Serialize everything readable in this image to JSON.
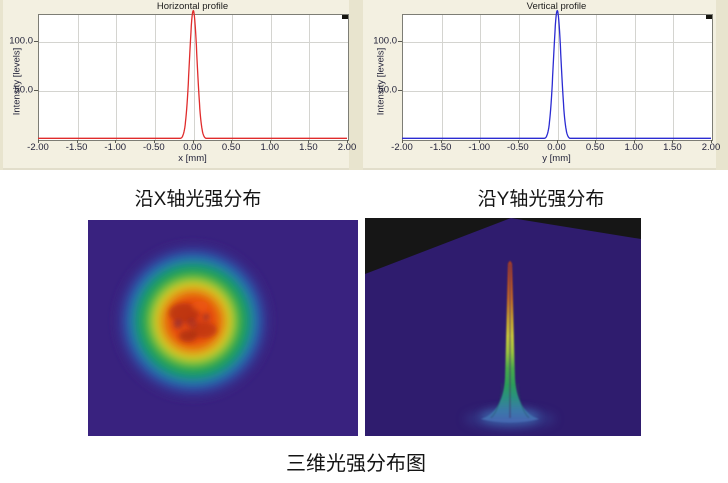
{
  "window": {
    "description": "laser beam profiler intensity analysis figure"
  },
  "theme": {
    "panel_background": "#f3f0e1",
    "panel_edge_strip": "#e8e4ce",
    "plot_background": "#ffffff",
    "plot_border": "#7d7d75",
    "gridline": "#d4d4d0",
    "tick_text": "#23233a",
    "page_background": "#ffffff"
  },
  "chart_data": [
    {
      "type": "line",
      "title": "Horizontal profile",
      "xlabel": "x [mm]",
      "ylabel": "Intensity [levels]",
      "x_range": [
        -2.0,
        2.0
      ],
      "y_range": [
        0,
        127.5
      ],
      "x_ticks": [
        -2.0,
        -1.5,
        -1.0,
        -0.5,
        0.0,
        0.5,
        1.0,
        1.5,
        2.0
      ],
      "x_tick_labels": [
        "-2.00",
        "-1.50",
        "-1.00",
        "-0.50",
        "0.00",
        "0.50",
        "1.00",
        "1.50",
        "2.00"
      ],
      "y_ticks": [
        50,
        100
      ],
      "y_tick_labels": [
        "50.0",
        "100.0"
      ],
      "grid": true,
      "legend": false,
      "series": [
        {
          "name": "horizontal-intensity-profile",
          "shape": "gaussian",
          "center_mm": 0.01,
          "sigma_mm": 0.05,
          "peak_levels": 131,
          "color": "#e02c2c"
        }
      ]
    },
    {
      "type": "line",
      "title": "Vertical profile",
      "xlabel": "y [mm]",
      "ylabel": "Intensity [levels]",
      "x_range": [
        -2.0,
        2.0
      ],
      "y_range": [
        0,
        127.5
      ],
      "x_ticks": [
        -2.0,
        -1.5,
        -1.0,
        -0.5,
        0.0,
        0.5,
        1.0,
        1.5,
        2.0
      ],
      "x_tick_labels": [
        "-2.00",
        "-1.50",
        "-1.00",
        "-0.50",
        "0.00",
        "0.50",
        "1.00",
        "1.50",
        "2.00"
      ],
      "y_ticks": [
        50,
        100
      ],
      "y_tick_labels": [
        "50.0",
        "100.0"
      ],
      "grid": true,
      "legend": false,
      "series": [
        {
          "name": "vertical-intensity-profile",
          "shape": "gaussian",
          "center_mm": 0.01,
          "sigma_mm": 0.05,
          "peak_levels": 131,
          "color": "#2b2bd2"
        }
      ]
    }
  ],
  "captions": {
    "x_axis": "沿X轴光强分布",
    "y_axis": "沿Y轴光强分布",
    "bottom": "三维光强分布图"
  },
  "images": {
    "beam_2d": {
      "description": "2D beam intensity spot, rainbow colormap on indigo background",
      "background": "#39227f",
      "colormap": [
        "#39227f",
        "#31409c",
        "#2272b4",
        "#1e9378",
        "#1fa44c",
        "#7ec437",
        "#d8d025",
        "#e8500e",
        "#dc3b10"
      ]
    },
    "beam_3d": {
      "description": "3D beam intensity surface, sharp rainbow peak on indigo floor over black background",
      "background": "#161616",
      "floor": "#2f1c6e",
      "colormap": [
        "#4468b0",
        "#2b9080",
        "#2c9d59",
        "#49a94a",
        "#9dc33e",
        "#c9c83a",
        "#c66a20",
        "#a8391c"
      ]
    }
  }
}
